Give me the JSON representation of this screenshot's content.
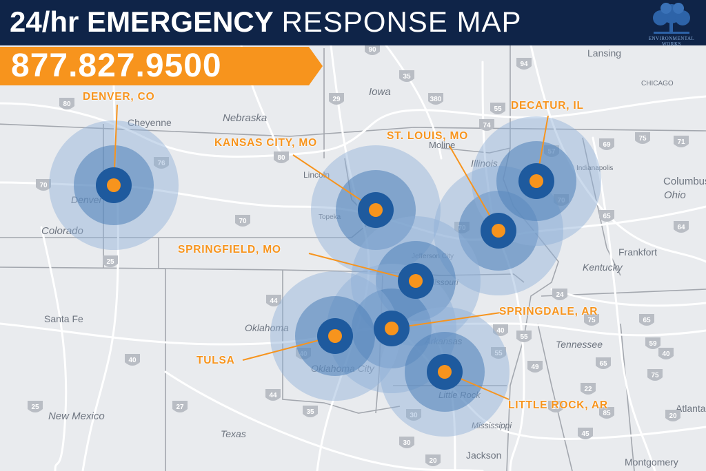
{
  "header": {
    "title_bold": "24/hr EMERGENCY",
    "title_light": "RESPONSE MAP",
    "phone": "877.827.9500",
    "logo_text": "ENVIRONMENTAL WORKS",
    "logo_icon": "tree-icon"
  },
  "colors": {
    "header_bg": "#0f2448",
    "phone_banner": "#f7941d",
    "label": "#f7941d",
    "marker_dot": "#f7941d",
    "ring_outer": "#8fb0d6",
    "ring_mid": "#4d7fb8",
    "ring_inner": "#1e5a9e",
    "map_bg": "#e9ebee",
    "roads": "#ffffff",
    "borders": "#a7abb2"
  },
  "locations": [
    {
      "name": "DENVER, CO"
    },
    {
      "name": "KANSAS CITY, MO"
    },
    {
      "name": "ST. LOUIS, MO"
    },
    {
      "name": "DECATUR, IL"
    },
    {
      "name": "SPRINGFIELD, MO"
    },
    {
      "name": "SPRINGDALE, AR"
    },
    {
      "name": "TULSA"
    },
    {
      "name": "LITTLE ROCK, AR"
    }
  ],
  "basemap": {
    "places": [
      "Cheyenne",
      "Nebraska",
      "Iowa",
      "Lansing",
      "CHICAGO",
      "Moline",
      "Illinois",
      "Indianapolis",
      "Columbus",
      "Ohio",
      "Lincoln",
      "Topeka",
      "Jefferson City",
      "Missouri",
      "Kentucky",
      "Frankfort",
      "Denver",
      "Colorado",
      "Santa Fe",
      "Oklahoma",
      "Oklahoma City",
      "Arkansas",
      "Tennessee",
      "Little Rock",
      "New Mexico",
      "Texas",
      "Mississippi",
      "Jackson",
      "Montgomery",
      "Atlanta"
    ],
    "highways": [
      "80",
      "90",
      "94",
      "35",
      "29",
      "380",
      "80",
      "76",
      "70",
      "70",
      "25",
      "55",
      "69",
      "75",
      "71",
      "57",
      "74",
      "65",
      "64",
      "70",
      "70",
      "44",
      "24",
      "40",
      "40",
      "25",
      "27",
      "35",
      "44",
      "40",
      "55",
      "30",
      "59",
      "20",
      "22",
      "20",
      "85",
      "75",
      "65",
      "65",
      "75",
      "40",
      "55",
      "49",
      "45",
      "30",
      "20"
    ]
  }
}
